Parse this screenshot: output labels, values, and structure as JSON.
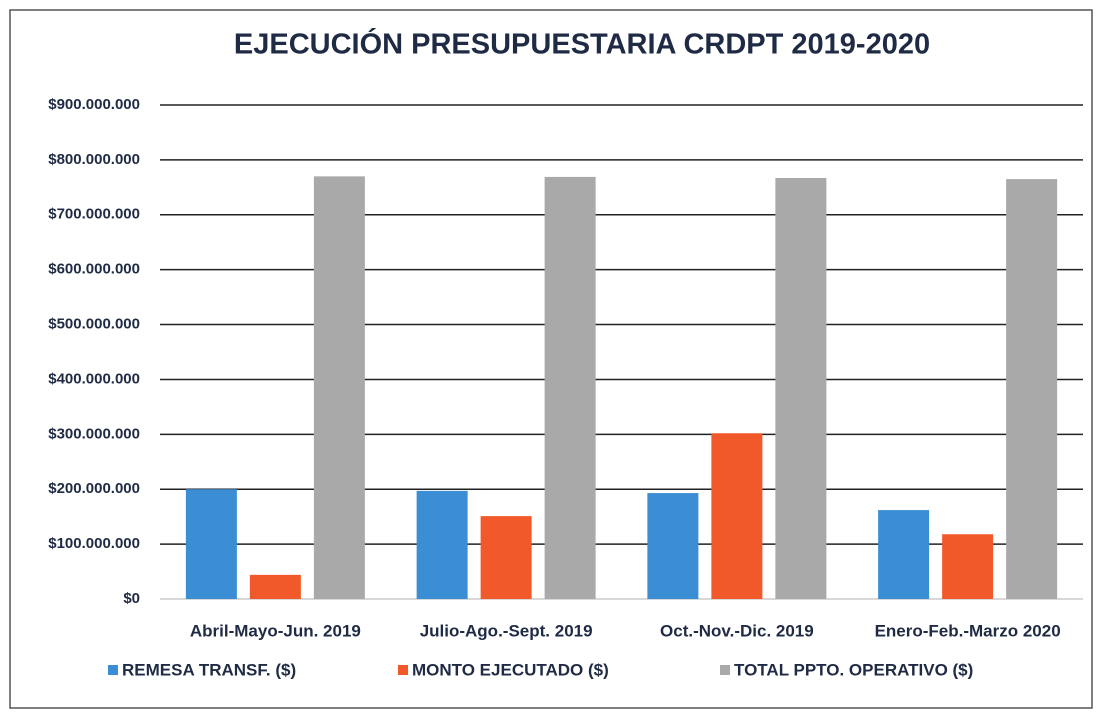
{
  "chart_data": {
    "type": "bar",
    "title": "EJECUCIÓN PRESUPUESTARIA CRDPT 2019-2020",
    "categories": [
      "Abril-Mayo-Jun. 2019",
      "Julio-Ago.-Sept. 2019",
      "Oct.-Nov.-Dic. 2019",
      "Enero-Feb.-Marzo 2020"
    ],
    "series": [
      {
        "name": "REMESA TRANSF. ($)",
        "color": "#3b8ed4",
        "values": [
          200000000,
          197000000,
          193000000,
          162000000
        ]
      },
      {
        "name": "MONTO EJECUTADO ($)",
        "color": "#f2592a",
        "values": [
          44000000,
          151000000,
          302000000,
          118000000
        ]
      },
      {
        "name": "TOTAL PPTO. OPERATIVO ($)",
        "color": "#a9a9a9",
        "values": [
          770000000,
          769000000,
          767000000,
          765000000
        ]
      }
    ],
    "ylim": [
      0,
      900000000
    ],
    "yticks": [
      {
        "value": 0,
        "label": "$0"
      },
      {
        "value": 100000000,
        "label": "$100.000.000"
      },
      {
        "value": 200000000,
        "label": "$200.000.000"
      },
      {
        "value": 300000000,
        "label": "$300.000.000"
      },
      {
        "value": 400000000,
        "label": "$400.000.000"
      },
      {
        "value": 500000000,
        "label": "$500.000.000"
      },
      {
        "value": 600000000,
        "label": "$600.000.000"
      },
      {
        "value": 700000000,
        "label": "$700.000.000"
      },
      {
        "value": 800000000,
        "label": "$800.000.000"
      },
      {
        "value": 900000000,
        "label": "$900.000.000"
      }
    ],
    "grid": true,
    "legend": "bottom"
  }
}
